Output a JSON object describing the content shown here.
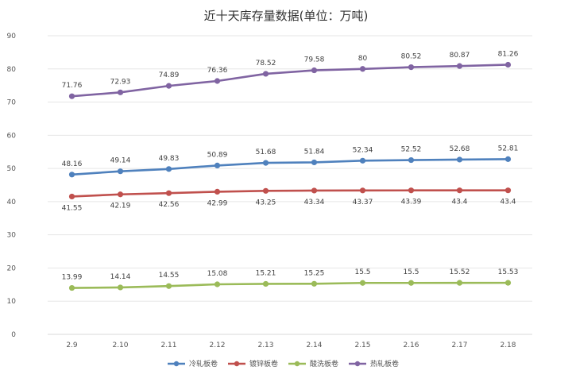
{
  "chart_data": {
    "type": "line",
    "title": "近十天库存量数据(单位：万吨)",
    "xlabel": "",
    "ylabel": "",
    "categories": [
      "2.9",
      "2.10",
      "2.11",
      "2.12",
      "2.13",
      "2.14",
      "2.15",
      "2.16",
      "2.17",
      "2.18"
    ],
    "ylim": [
      0,
      90
    ],
    "yticks": [
      0,
      10,
      20,
      30,
      40,
      50,
      60,
      70,
      80,
      90
    ],
    "grid": true,
    "legend_position": "bottom",
    "series": [
      {
        "name": "冷轧板卷",
        "color": "#4f81bd",
        "label_position": "above",
        "values": [
          48.16,
          49.14,
          49.83,
          50.89,
          51.68,
          51.84,
          52.34,
          52.52,
          52.68,
          52.81
        ],
        "labels": [
          "48.16",
          "49.14",
          "49.83",
          "50.89",
          "51.68",
          "51.84",
          "52.34",
          "52.52",
          "52.68",
          "52.81"
        ]
      },
      {
        "name": "镀锌板卷",
        "color": "#c0504d",
        "label_position": "below",
        "values": [
          41.55,
          42.19,
          42.56,
          42.99,
          43.25,
          43.34,
          43.37,
          43.39,
          43.4,
          43.4
        ],
        "labels": [
          "41.55",
          "42.19",
          "42.56",
          "42.99",
          "43.25",
          "43.34",
          "43.37",
          "43.39",
          "43.4",
          "43.4"
        ]
      },
      {
        "name": "酸洗板卷",
        "color": "#9bbb59",
        "label_position": "above",
        "values": [
          13.99,
          14.14,
          14.55,
          15.08,
          15.21,
          15.25,
          15.5,
          15.5,
          15.52,
          15.53
        ],
        "labels": [
          "13.99",
          "14.14",
          "14.55",
          "15.08",
          "15.21",
          "15.25",
          "15.5",
          "15.5",
          "15.52",
          "15.53"
        ]
      },
      {
        "name": "热轧板卷",
        "color": "#8064a2",
        "label_position": "above",
        "values": [
          71.76,
          72.93,
          74.89,
          76.36,
          78.52,
          79.58,
          80,
          80.52,
          80.87,
          81.26
        ],
        "labels": [
          "71.76",
          "72.93",
          "74.89",
          "76.36",
          "78.52",
          "79.58",
          "80",
          "80.52",
          "80.87",
          "81.26"
        ]
      }
    ]
  }
}
